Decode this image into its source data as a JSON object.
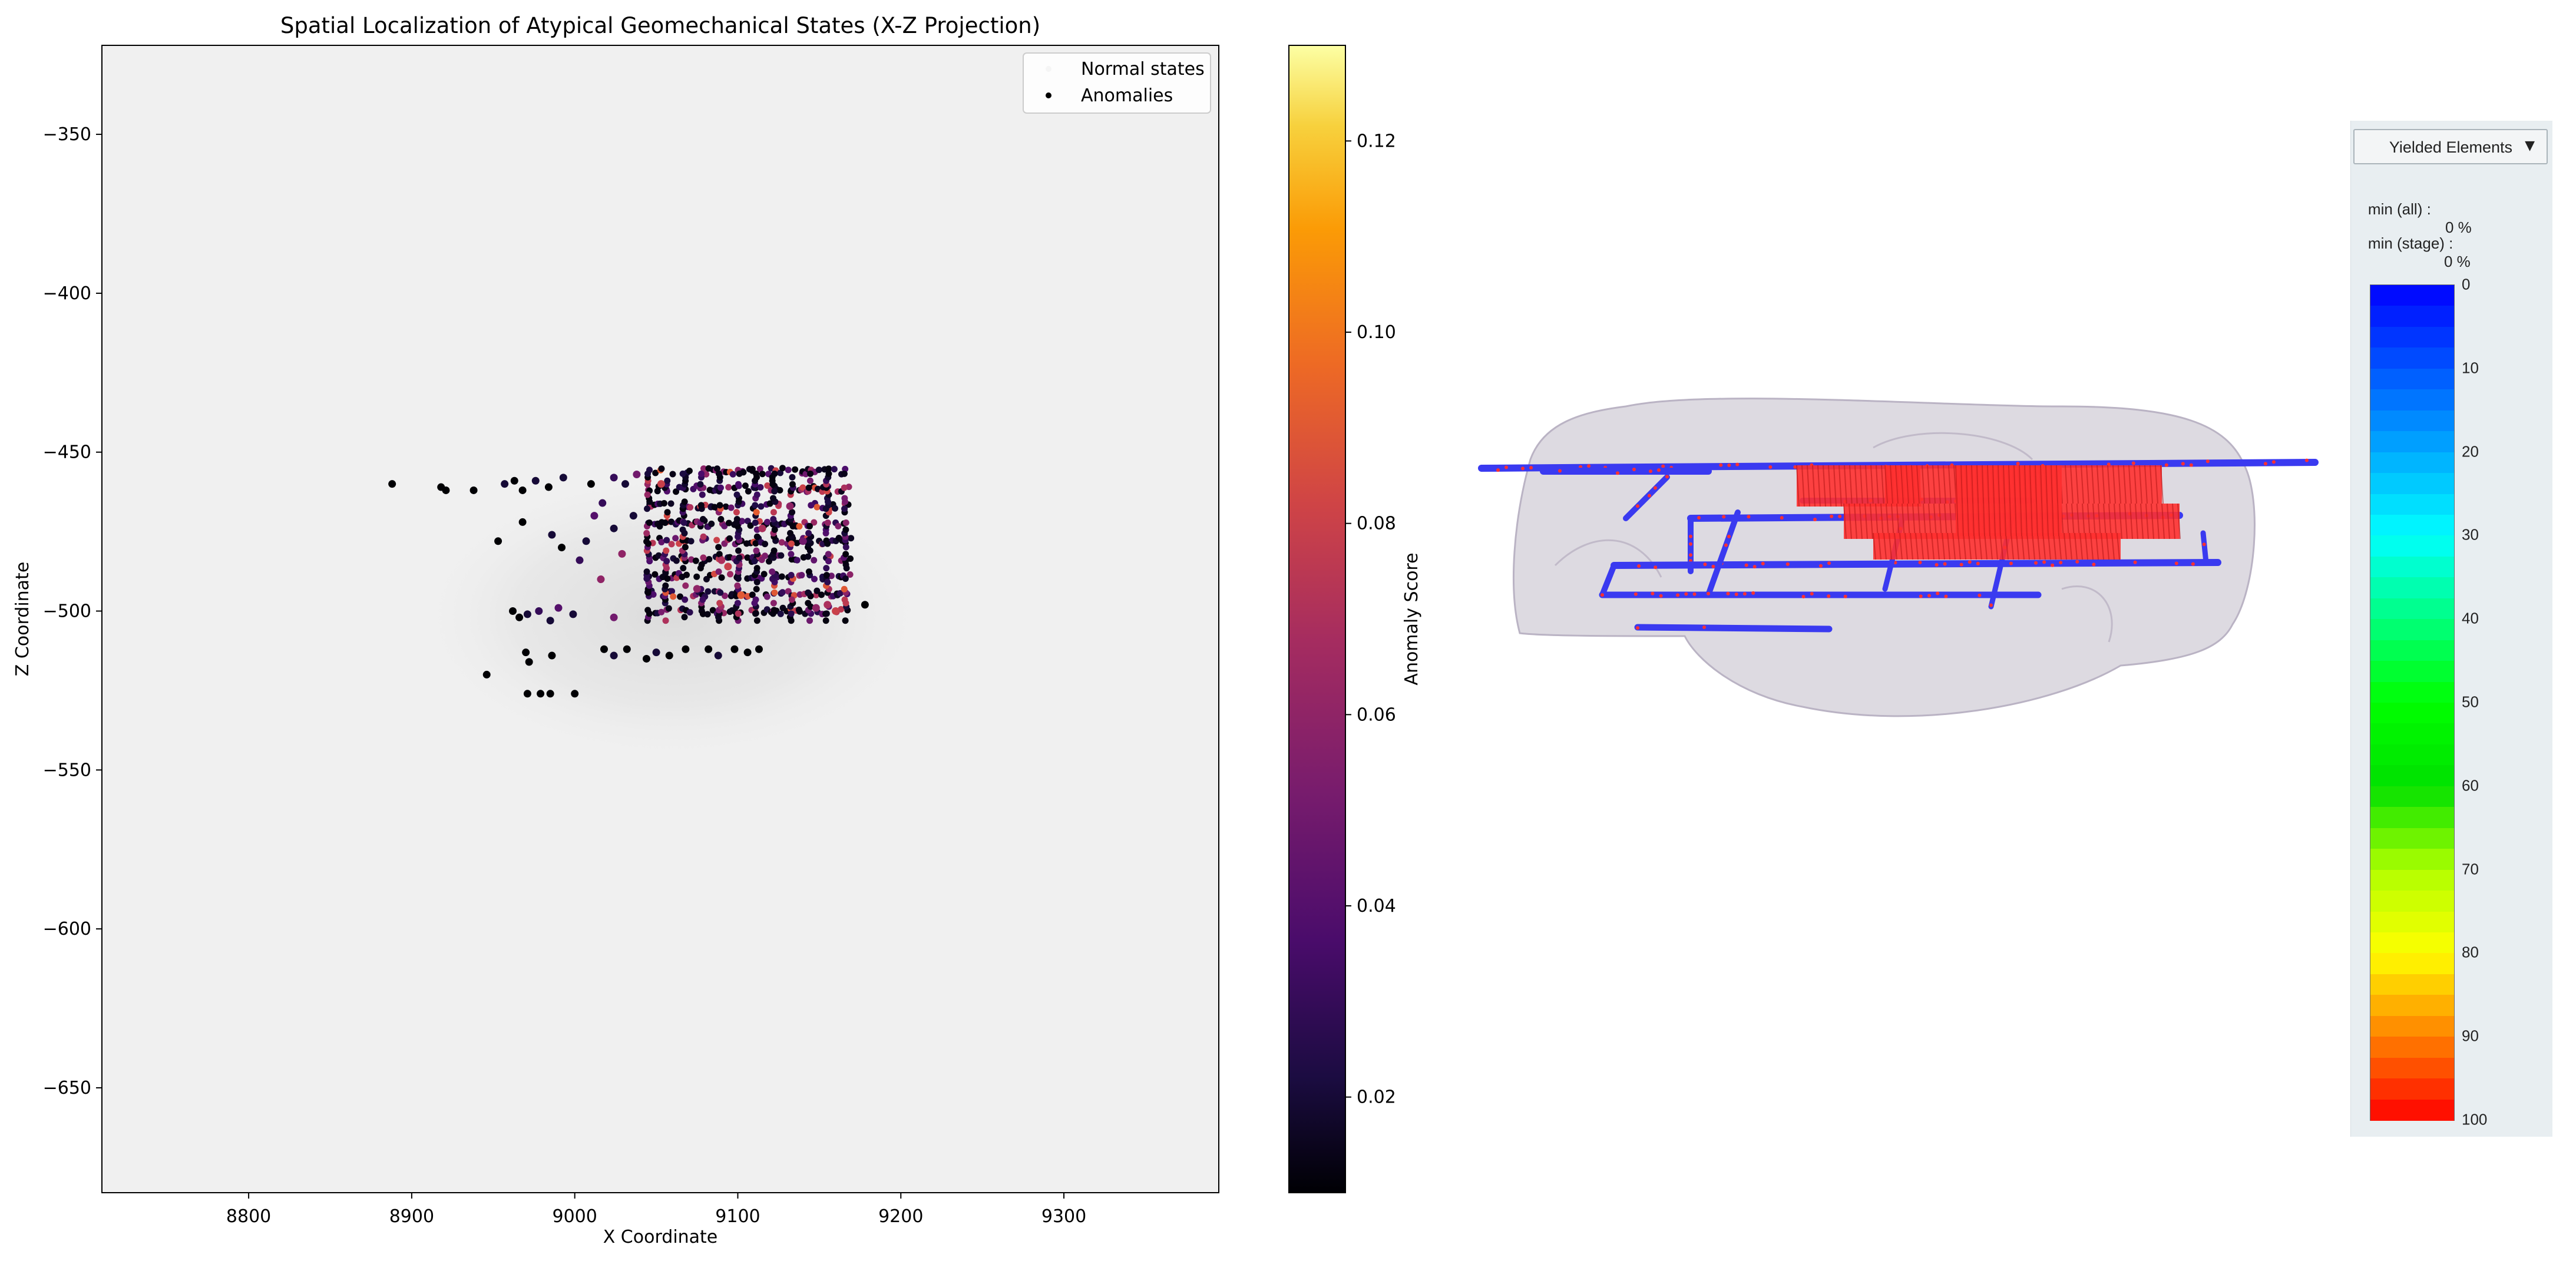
{
  "chart_data": [
    {
      "type": "scatter",
      "title": "Spatial Localization of Atypical Geomechanical States (X-Z Projection)",
      "xlabel": "X Coordinate",
      "ylabel": "Z Coordinate",
      "xlim": [
        8710,
        9395
      ],
      "ylim": [
        -683,
        -322
      ],
      "xticks": [
        8800,
        8900,
        9000,
        9100,
        9200,
        9300
      ],
      "yticks": [
        -350,
        -400,
        -450,
        -500,
        -550,
        -600,
        -650
      ],
      "legend_position": "top-right",
      "legend": [
        "Normal states",
        "Anomalies"
      ],
      "colorbar": {
        "label": "Anomaly Score",
        "range": [
          0.01,
          0.13
        ],
        "ticks": [
          0.02,
          0.04,
          0.06,
          0.08,
          0.1,
          0.12
        ],
        "colormap": "inferno"
      },
      "background_color": "#f0f0f0",
      "series": [
        {
          "name": "Normal states",
          "color": "#e0e0e0",
          "x_range": [
            8900,
            9220
          ],
          "z_range": [
            -548,
            -455
          ]
        },
        {
          "name": "Anomalies",
          "points": [
            [
              8888,
              -460,
              0.01
            ],
            [
              8918,
              -461,
              0.01
            ],
            [
              8921,
              -462,
              0.01
            ],
            [
              8938,
              -462,
              0.01
            ],
            [
              8957,
              -460,
              0.02
            ],
            [
              8963,
              -459,
              0.01
            ],
            [
              8968,
              -462,
              0.01
            ],
            [
              8976,
              -459,
              0.02
            ],
            [
              8984,
              -461,
              0.01
            ],
            [
              8993,
              -458,
              0.02
            ],
            [
              9010,
              -460,
              0.01
            ],
            [
              9024,
              -458,
              0.03
            ],
            [
              9031,
              -460,
              0.02
            ],
            [
              9038,
              -457,
              0.05
            ],
            [
              8953,
              -478,
              0.01
            ],
            [
              8968,
              -472,
              0.01
            ],
            [
              8986,
              -476,
              0.02
            ],
            [
              8992,
              -480,
              0.01
            ],
            [
              9003,
              -484,
              0.03
            ],
            [
              9007,
              -478,
              0.02
            ],
            [
              9012,
              -470,
              0.04
            ],
            [
              9017,
              -466,
              0.03
            ],
            [
              9024,
              -474,
              0.02
            ],
            [
              9029,
              -482,
              0.06
            ],
            [
              9036,
              -470,
              0.02
            ],
            [
              8962,
              -500,
              0.01
            ],
            [
              8966,
              -502,
              0.01
            ],
            [
              8971,
              -501,
              0.02
            ],
            [
              8978,
              -500,
              0.03
            ],
            [
              8985,
              -503,
              0.02
            ],
            [
              8990,
              -499,
              0.04
            ],
            [
              8999,
              -501,
              0.02
            ],
            [
              9016,
              -490,
              0.06
            ],
            [
              9024,
              -502,
              0.05
            ],
            [
              8970,
              -513,
              0.01
            ],
            [
              8972,
              -516,
              0.01
            ],
            [
              8986,
              -514,
              0.01
            ],
            [
              9018,
              -512,
              0.01
            ],
            [
              9024,
              -514,
              0.02
            ],
            [
              9032,
              -512,
              0.01
            ],
            [
              9044,
              -515,
              0.01
            ],
            [
              9050,
              -513,
              0.02
            ],
            [
              9058,
              -514,
              0.01
            ],
            [
              9068,
              -512,
              0.01
            ],
            [
              9082,
              -512,
              0.01
            ],
            [
              9088,
              -514,
              0.02
            ],
            [
              9098,
              -512,
              0.01
            ],
            [
              9106,
              -513,
              0.01
            ],
            [
              9113,
              -512,
              0.01
            ],
            [
              8946,
              -520,
              0.01
            ],
            [
              8971,
              -526,
              0.01
            ],
            [
              8979,
              -526,
              0.01
            ],
            [
              8985,
              -526,
              0.01
            ],
            [
              9000,
              -526,
              0.01
            ],
            [
              9178,
              -498,
              0.01
            ],
            [
              9155,
              -498,
              0.07
            ],
            [
              9160,
              -500,
              0.08
            ],
            [
              9148,
              -499,
              0.06
            ],
            [
              9115,
              -474,
              0.07
            ],
            [
              9132,
              -467,
              0.06
            ],
            [
              9094,
              -486,
              0.08
            ],
            [
              9090,
              -484,
              0.07
            ],
            [
              9053,
              -460,
              0.08
            ],
            [
              9075,
              -493,
              0.06
            ],
            [
              9102,
              -495,
              0.09
            ],
            [
              9140,
              -478,
              0.05
            ]
          ],
          "dense_regions": [
            {
              "x": [
                9045,
                9170
              ],
              "z": [
                -503,
                -456
              ]
            }
          ]
        }
      ]
    },
    {
      "type": "heatmap",
      "dropdown_label": "Yielded Elements",
      "dropdown_icon": "caret-down-icon",
      "stats": [
        {
          "label": "min (all) :",
          "value": "0 %"
        },
        {
          "label": "min (stage) :",
          "value": "0 %"
        }
      ],
      "legend_ticks": [
        "0",
        "10",
        "20",
        "30",
        "40",
        "50",
        "60",
        "70",
        "80",
        "90",
        "100"
      ],
      "legend_colors": [
        "#0000ff",
        "#0055ff",
        "#00aaff",
        "#00ffff",
        "#00ff80",
        "#00ff00",
        "#00e000",
        "#b0ff00",
        "#ffff00",
        "#ff8000",
        "#ff0000"
      ],
      "legend_range": [
        0,
        100
      ],
      "model_colors": {
        "low": "#3a3af0",
        "high": "#ff3030",
        "envelope": "#d7d3dc"
      }
    }
  ]
}
